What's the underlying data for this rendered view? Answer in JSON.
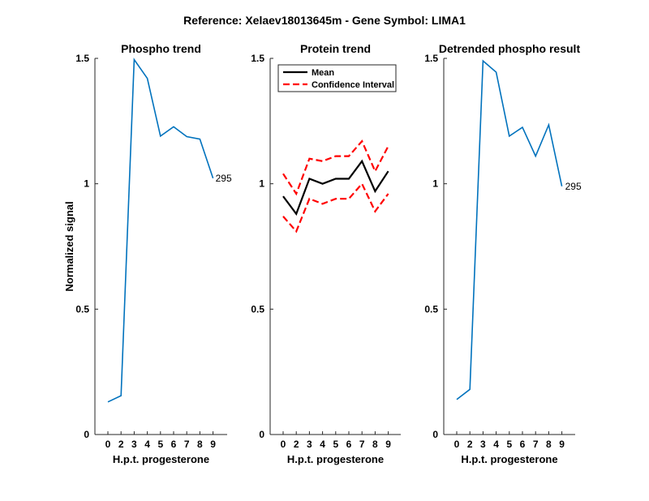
{
  "figure": {
    "suptitle": "Reference:  Xelaev18013645m - Gene Symbol:  LIMA1",
    "ylabel": "Normalized signal"
  },
  "chart_data": [
    {
      "type": "line",
      "title": "Phospho trend",
      "xlabel": "H.p.t. progesterone",
      "ylabel": "Normalized signal",
      "categories": [
        "0",
        "2",
        "3",
        "4",
        "5",
        "6",
        "7",
        "8",
        "9"
      ],
      "ylim": [
        0,
        1.5
      ],
      "yticks": [
        "0",
        "0.5",
        "1",
        "1.5"
      ],
      "series": [
        {
          "values": [
            0.13,
            0.155,
            1.495,
            1.42,
            1.19,
            1.227,
            1.188,
            1.178,
            1.022
          ],
          "color": "#0072BD",
          "style": "solid"
        }
      ],
      "annotation": "295",
      "legend": null
    },
    {
      "type": "line",
      "title": "Protein trend",
      "xlabel": "H.p.t. progesterone",
      "categories": [
        "0",
        "2",
        "3",
        "4",
        "5",
        "6",
        "7",
        "8",
        "9"
      ],
      "ylim": [
        0,
        1.5
      ],
      "yticks": [
        "0",
        "0.5",
        "1",
        "1.5"
      ],
      "series": [
        {
          "name": "Mean",
          "values": [
            0.95,
            0.88,
            1.02,
            1.0,
            1.02,
            1.02,
            1.09,
            0.97,
            1.05
          ],
          "color": "#000000",
          "style": "solid"
        },
        {
          "name": "Confidence Interval",
          "values": [
            1.04,
            0.96,
            1.1,
            1.09,
            1.11,
            1.11,
            1.17,
            1.05,
            1.15
          ],
          "color": "#FF0000",
          "style": "dashed"
        },
        {
          "values": [
            0.87,
            0.81,
            0.94,
            0.92,
            0.94,
            0.94,
            1.0,
            0.89,
            0.96
          ],
          "color": "#FF0000",
          "style": "dashed"
        }
      ],
      "legend": "top",
      "legend_entries": [
        "Mean",
        "Confidence Interval"
      ]
    },
    {
      "type": "line",
      "title": "Detrended phospho result",
      "xlabel": "H.p.t. progesterone",
      "categories": [
        "0",
        "2",
        "3",
        "4",
        "5",
        "6",
        "7",
        "8",
        "9"
      ],
      "ylim": [
        0,
        1.5
      ],
      "yticks": [
        "0",
        "0.5",
        "1",
        "1.5"
      ],
      "series": [
        {
          "values": [
            0.14,
            0.18,
            1.49,
            1.445,
            1.19,
            1.225,
            1.11,
            1.235,
            0.99
          ],
          "color": "#0072BD",
          "style": "solid"
        }
      ],
      "annotation": "295",
      "legend": null
    }
  ]
}
